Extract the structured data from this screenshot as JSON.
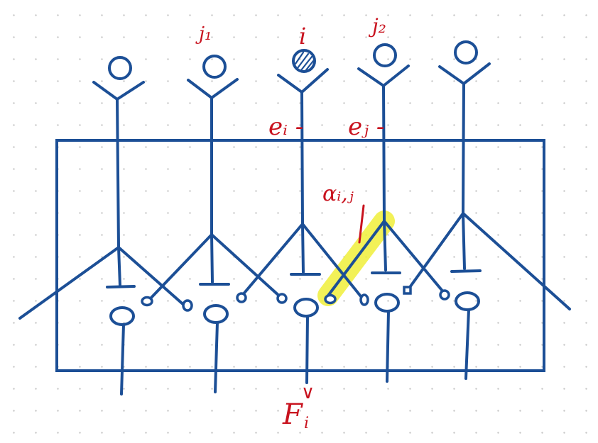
{
  "colors": {
    "ink_blue": "#1c4f96",
    "ink_red": "#c8121e",
    "highlight": "#f0ee3a",
    "dot_grid": "#c9c9c9"
  },
  "labels": {
    "neuron_j1": "j₁",
    "neuron_i": "i",
    "neuron_j2": "j₂",
    "e_i": "eᵢ -",
    "e_j": "eⱼ -",
    "alpha_ij": "αᵢ,ⱼ",
    "output": "F",
    "output_sub": "i",
    "output_sup": "∨"
  }
}
